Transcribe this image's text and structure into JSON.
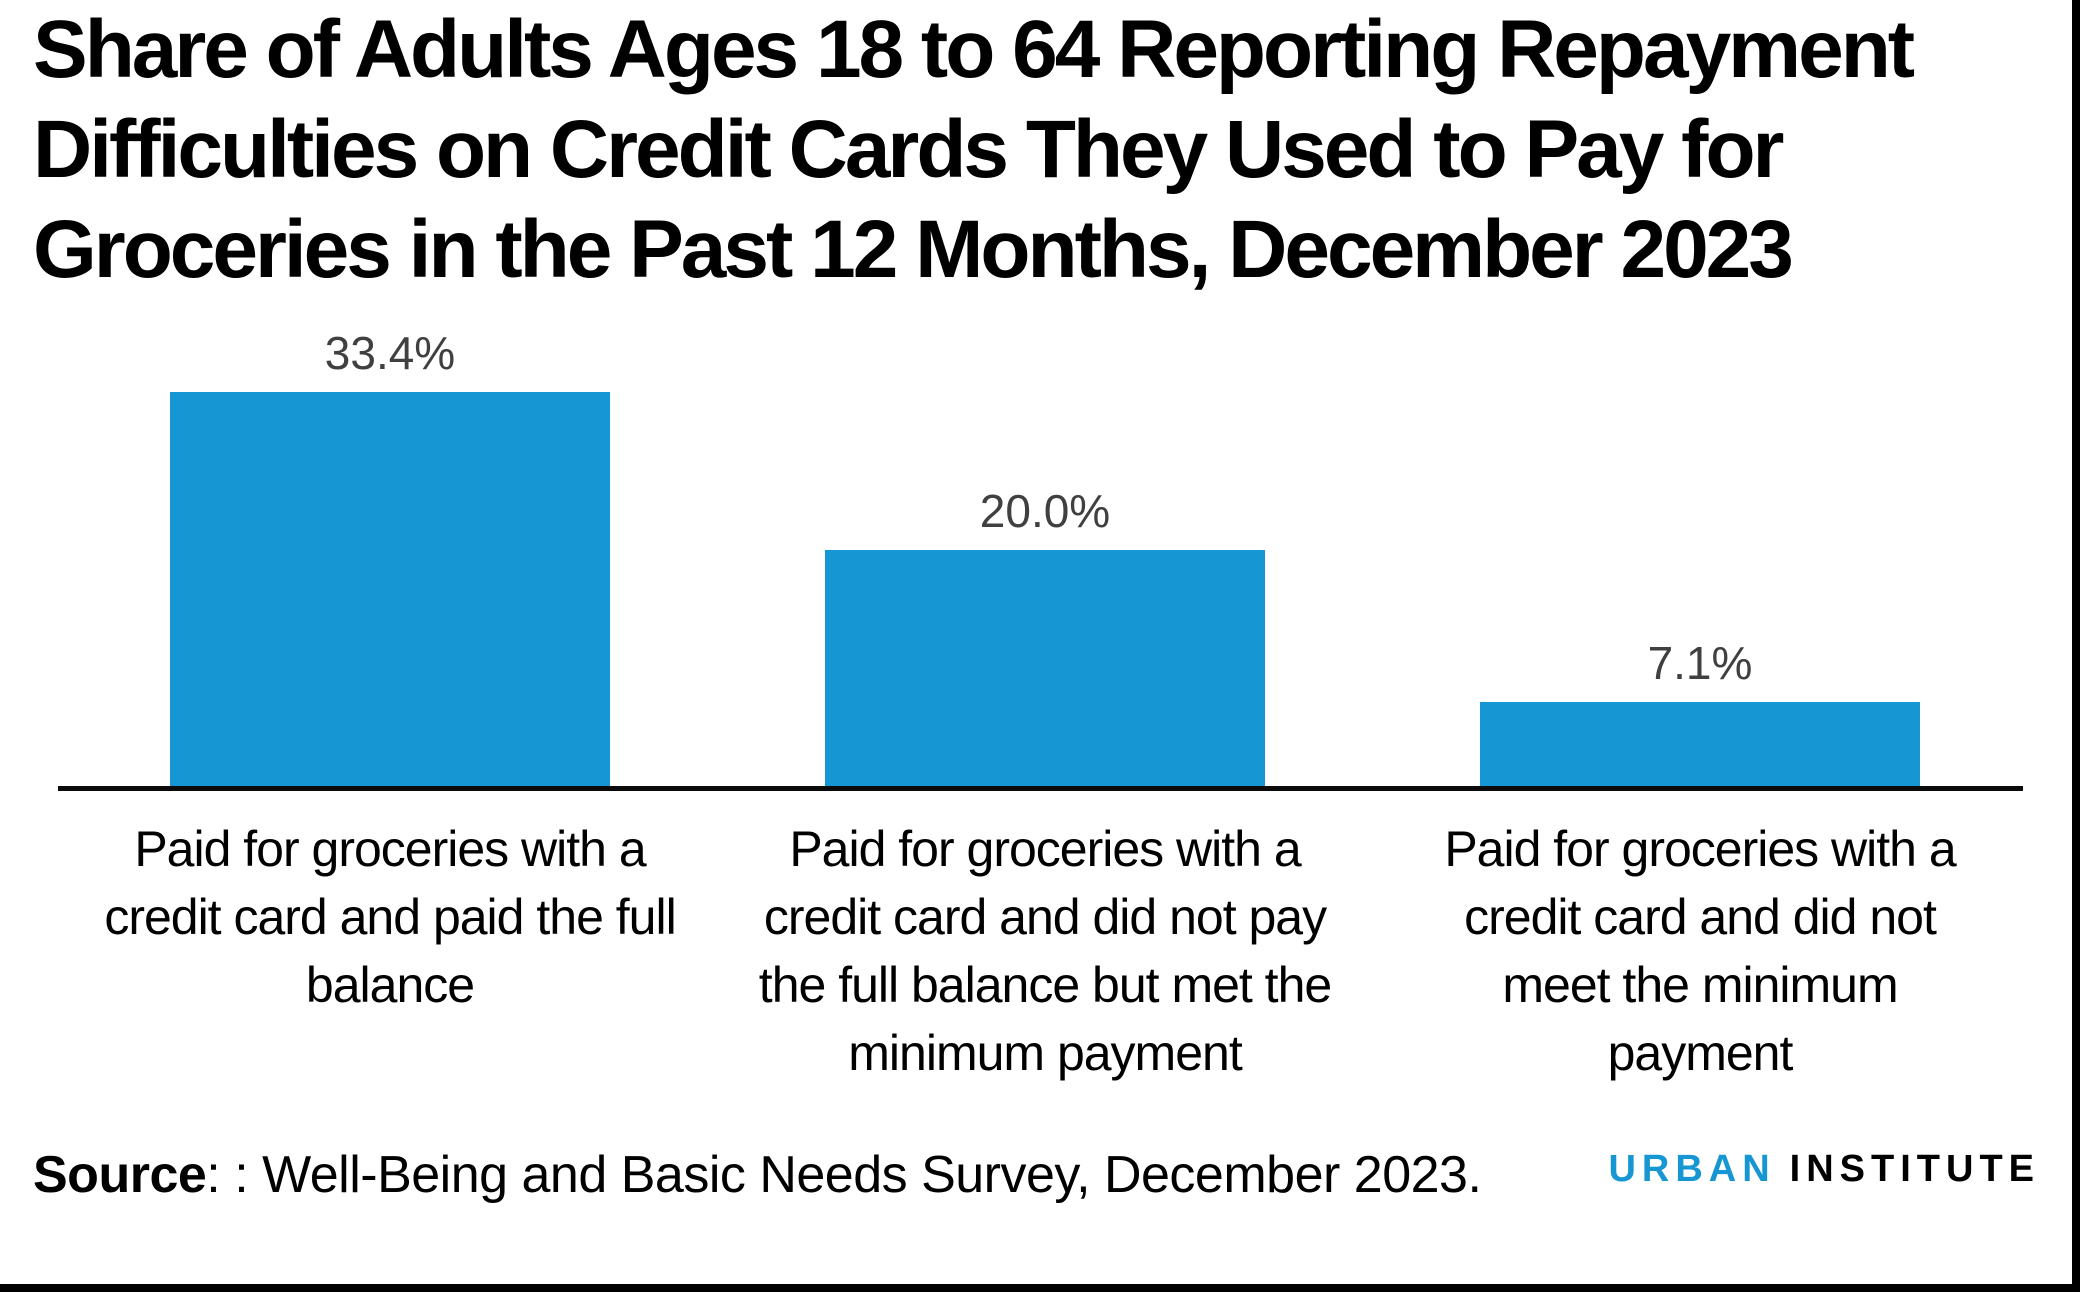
{
  "header": {
    "title": "Share of Adults Ages 18 to 64 Reporting Repayment Difficulties on Credit Cards They Used to Pay for Groceries in the Past 12 Months, December 2023",
    "title_lines": [
      "Share of Adults Ages 18 to 64 Reporting Repayment",
      "Difficulties on Credit Cards They Used to Pay for",
      "Groceries in the Past 12 Months, December 2023"
    ]
  },
  "chart_data": {
    "type": "bar",
    "title": "Share of Adults Ages 18 to 64 Reporting Repayment Difficulties on Credit Cards They Used to Pay for Groceries in the Past 12 Months, December 2023",
    "categories": [
      "Paid for groceries with a credit card and paid the full balance",
      "Paid for groceries with a credit card and did not pay the full balance but met the minimum payment",
      "Paid for groceries with a credit card and did not meet the minimum payment"
    ],
    "category_lines": [
      [
        "Paid for groceries with a",
        "credit card and paid the full",
        "balance"
      ],
      [
        "Paid for groceries with a",
        "credit card and did not pay",
        "the full balance but met the",
        "minimum payment"
      ],
      [
        "Paid for groceries with a",
        "credit card and did not",
        "meet the minimum",
        "payment"
      ]
    ],
    "values": [
      33.4,
      20.0,
      7.1
    ],
    "value_labels": [
      "33.4%",
      "20.0%",
      "7.1%"
    ],
    "xlabel": "",
    "ylabel": "",
    "ylim": [
      0,
      33.4
    ],
    "grid": false,
    "legend": "none",
    "bar_color": "#1696d2",
    "value_label_color": "#404040",
    "axis_color": "#0a0a0a",
    "background_color": "#ffffff"
  },
  "footer": {
    "source_label": "Source",
    "source_text": ": : Well-Being and Basic Needs Survey, December 2023.",
    "logo": {
      "word1": "URBAN",
      "word2": "INSTITUTE",
      "word1_color": "#1696d2",
      "word2_color": "#000000"
    }
  }
}
